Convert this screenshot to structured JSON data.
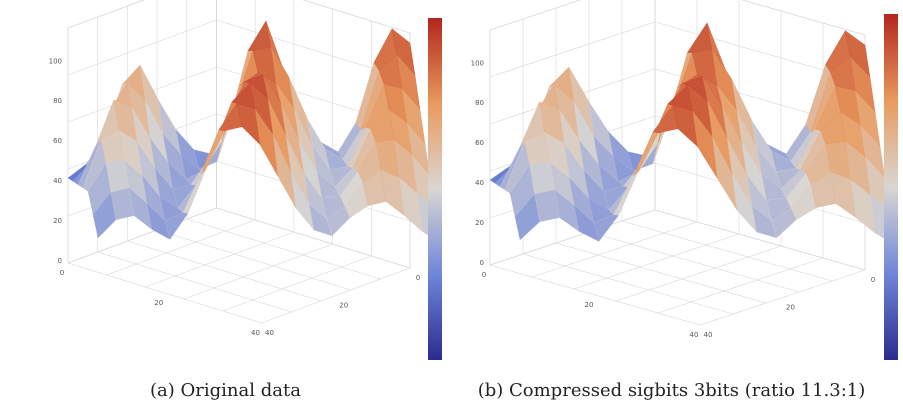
{
  "colors": {
    "low": "#2b2c8e",
    "mid_low": "#6f86d9",
    "mid": "#d9d6d3",
    "mid_high": "#e99a5e",
    "high": "#b3261e",
    "grid": "#d7d7d7"
  },
  "chart_data": [
    {
      "type": "surface",
      "caption": "(a) Original data",
      "colorbar": {
        "min": 0,
        "max": 100
      },
      "z_ticks": [
        "100",
        "80",
        "60",
        "40",
        "20",
        "0"
      ],
      "x_ticks": [
        "0",
        "20",
        "40"
      ],
      "y_ticks": [
        "0",
        "20",
        "40"
      ],
      "grid": true,
      "colormap": "coolwarm",
      "surface_rows": [
        [
          15,
          22,
          35,
          62,
          72,
          55,
          40,
          30,
          28,
          45,
          80,
          95,
          70,
          50,
          35,
          30,
          45,
          75,
          92,
          85
        ],
        [
          20,
          30,
          55,
          70,
          62,
          45,
          35,
          28,
          32,
          60,
          88,
          90,
          75,
          55,
          40,
          35,
          50,
          80,
          88,
          78
        ],
        [
          25,
          45,
          68,
          65,
          50,
          38,
          30,
          35,
          50,
          78,
          85,
          80,
          68,
          50,
          38,
          40,
          60,
          82,
          80,
          70
        ],
        [
          30,
          55,
          60,
          55,
          42,
          32,
          35,
          48,
          70,
          88,
          92,
          78,
          60,
          45,
          38,
          48,
          68,
          78,
          72,
          62
        ],
        [
          35,
          50,
          52,
          45,
          35,
          30,
          42,
          62,
          85,
          95,
          88,
          70,
          52,
          40,
          42,
          55,
          70,
          72,
          65,
          55
        ],
        [
          30,
          42,
          45,
          38,
          30,
          35,
          55,
          78,
          92,
          90,
          78,
          60,
          45,
          38,
          45,
          58,
          65,
          62,
          55,
          48
        ],
        [
          25,
          35,
          38,
          32,
          28,
          42,
          65,
          85,
          88,
          80,
          65,
          50,
          40,
          38,
          48,
          55,
          58,
          52,
          45,
          40
        ]
      ]
    },
    {
      "type": "surface",
      "caption": "(b) Compressed sigbits 3bits (ratio 11.3:1)",
      "colorbar": {
        "min": 0,
        "max": 100
      },
      "z_ticks": [
        "100",
        "80",
        "60",
        "40",
        "20",
        "0"
      ],
      "x_ticks": [
        "0",
        "20",
        "40"
      ],
      "y_ticks": [
        "0",
        "20",
        "40"
      ],
      "grid": true,
      "colormap": "coolwarm",
      "surface_rows": [
        [
          15,
          22,
          35,
          62,
          72,
          55,
          40,
          30,
          28,
          45,
          80,
          95,
          70,
          50,
          35,
          30,
          45,
          75,
          92,
          85
        ],
        [
          20,
          30,
          55,
          70,
          62,
          45,
          35,
          28,
          32,
          60,
          88,
          90,
          75,
          55,
          40,
          35,
          50,
          80,
          88,
          78
        ],
        [
          25,
          45,
          68,
          65,
          50,
          38,
          30,
          35,
          50,
          78,
          85,
          80,
          68,
          50,
          38,
          40,
          60,
          82,
          80,
          70
        ],
        [
          30,
          55,
          60,
          55,
          42,
          32,
          35,
          48,
          70,
          88,
          92,
          78,
          60,
          45,
          38,
          48,
          68,
          78,
          72,
          62
        ],
        [
          35,
          50,
          52,
          45,
          35,
          30,
          42,
          62,
          85,
          95,
          88,
          70,
          52,
          40,
          42,
          55,
          70,
          72,
          65,
          55
        ],
        [
          30,
          42,
          45,
          38,
          30,
          35,
          55,
          78,
          92,
          90,
          78,
          60,
          45,
          38,
          45,
          58,
          65,
          62,
          55,
          48
        ],
        [
          25,
          35,
          38,
          32,
          28,
          42,
          65,
          85,
          88,
          80,
          65,
          50,
          40,
          38,
          48,
          55,
          58,
          52,
          45,
          40
        ]
      ]
    }
  ]
}
